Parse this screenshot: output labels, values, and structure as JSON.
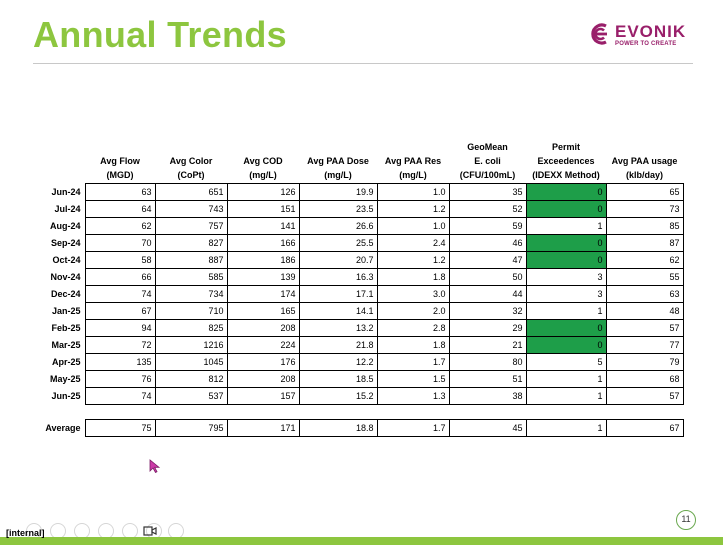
{
  "slide": {
    "title": "Annual Trends",
    "page_number": "11",
    "footer_label": "[internal]"
  },
  "logo": {
    "name": "EVONIK",
    "tagline": "POWER TO CREATE",
    "color": "#991f6a"
  },
  "colors": {
    "title": "#8dc63f",
    "highlight": "#1e9e49",
    "accent_bar": "#8dc63f"
  },
  "table": {
    "headers": [
      [
        "Avg Flow",
        "(MGD)"
      ],
      [
        "Avg Color",
        "(CoPt)"
      ],
      [
        "Avg COD",
        "(mg/L)"
      ],
      [
        "Avg PAA Dose",
        "(mg/L)"
      ],
      [
        "Avg  PAA Res",
        "(mg/L)"
      ],
      [
        "GeoMean",
        "E. coli",
        "(CFU/100mL)"
      ],
      [
        "Permit",
        "Exceedences",
        "(IDEXX Method)"
      ],
      [
        "Avg PAA usage",
        "(klb/day)"
      ]
    ],
    "rows": [
      {
        "label": "Jun-24",
        "values": [
          "63",
          "651",
          "126",
          "19.9",
          "1.0",
          "35",
          "0",
          "65"
        ],
        "permit_highlight": true
      },
      {
        "label": "Jul-24",
        "values": [
          "64",
          "743",
          "151",
          "23.5",
          "1.2",
          "52",
          "0",
          "73"
        ],
        "permit_highlight": true
      },
      {
        "label": "Aug-24",
        "values": [
          "62",
          "757",
          "141",
          "26.6",
          "1.0",
          "59",
          "1",
          "85"
        ],
        "permit_highlight": false
      },
      {
        "label": "Sep-24",
        "values": [
          "70",
          "827",
          "166",
          "25.5",
          "2.4",
          "46",
          "0",
          "87"
        ],
        "permit_highlight": true
      },
      {
        "label": "Oct-24",
        "values": [
          "58",
          "887",
          "186",
          "20.7",
          "1.2",
          "47",
          "0",
          "62"
        ],
        "permit_highlight": true
      },
      {
        "label": "Nov-24",
        "values": [
          "66",
          "585",
          "139",
          "16.3",
          "1.8",
          "50",
          "3",
          "55"
        ],
        "permit_highlight": false
      },
      {
        "label": "Dec-24",
        "values": [
          "74",
          "734",
          "174",
          "17.1",
          "3.0",
          "44",
          "3",
          "63"
        ],
        "permit_highlight": false
      },
      {
        "label": "Jan-25",
        "values": [
          "67",
          "710",
          "165",
          "14.1",
          "2.0",
          "32",
          "1",
          "48"
        ],
        "permit_highlight": false
      },
      {
        "label": "Feb-25",
        "values": [
          "94",
          "825",
          "208",
          "13.2",
          "2.8",
          "29",
          "0",
          "57"
        ],
        "permit_highlight": true
      },
      {
        "label": "Mar-25",
        "values": [
          "72",
          "1216",
          "224",
          "21.8",
          "1.8",
          "21",
          "0",
          "77"
        ],
        "permit_highlight": true
      },
      {
        "label": "Apr-25",
        "values": [
          "135",
          "1045",
          "176",
          "12.2",
          "1.7",
          "80",
          "5",
          "79"
        ],
        "permit_highlight": false
      },
      {
        "label": "May-25",
        "values": [
          "76",
          "812",
          "208",
          "18.5",
          "1.5",
          "51",
          "1",
          "68"
        ],
        "permit_highlight": false
      },
      {
        "label": "Jun-25",
        "values": [
          "74",
          "537",
          "157",
          "15.2",
          "1.3",
          "38",
          "1",
          "57"
        ],
        "permit_highlight": false
      }
    ],
    "average": {
      "label": "Average",
      "values": [
        "75",
        "795",
        "171",
        "18.8",
        "1.7",
        "45",
        "1",
        "67"
      ]
    }
  },
  "presenter_controls": [
    "previous-icon",
    "next-icon",
    "pen-icon",
    "view-slides-icon",
    "zoom-icon",
    "subtitles-icon",
    "camera-icon",
    "more-icon"
  ]
}
